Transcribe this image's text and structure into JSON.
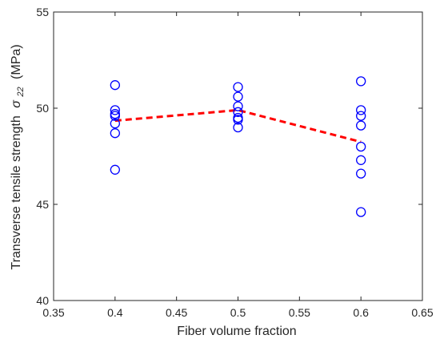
{
  "chart_data": {
    "type": "scatter",
    "title": "",
    "xlabel": "Fiber volume fraction",
    "ylabel_main": "Transverse tensile strength",
    "ylabel_symbol": "σ",
    "ylabel_subscript": "22",
    "ylabel_unit": "(MPa)",
    "xlim": [
      0.35,
      0.65
    ],
    "ylim": [
      40,
      55
    ],
    "x_ticks": [
      0.35,
      0.4,
      0.45,
      0.5,
      0.55,
      0.6,
      0.65
    ],
    "x_tick_labels": [
      "0.35",
      "0.4",
      "0.45",
      "0.5",
      "0.55",
      "0.6",
      "0.65"
    ],
    "y_ticks": [
      40,
      45,
      50,
      55
    ],
    "y_tick_labels": [
      "40",
      "45",
      "50",
      "55"
    ],
    "grid": false,
    "colors": {
      "markers": "#0000ff",
      "mean_line": "#ff0000",
      "axes": "#262626"
    },
    "series": [
      {
        "marker": "open-circle",
        "points": [
          {
            "x": 0.4,
            "y": 51.2
          },
          {
            "x": 0.4,
            "y": 49.9
          },
          {
            "x": 0.4,
            "y": 49.7
          },
          {
            "x": 0.4,
            "y": 49.6
          },
          {
            "x": 0.4,
            "y": 49.2
          },
          {
            "x": 0.4,
            "y": 48.7
          },
          {
            "x": 0.4,
            "y": 46.8
          },
          {
            "x": 0.5,
            "y": 51.1
          },
          {
            "x": 0.5,
            "y": 50.6
          },
          {
            "x": 0.5,
            "y": 50.1
          },
          {
            "x": 0.5,
            "y": 49.8
          },
          {
            "x": 0.5,
            "y": 49.5
          },
          {
            "x": 0.5,
            "y": 49.4
          },
          {
            "x": 0.5,
            "y": 49.0
          },
          {
            "x": 0.6,
            "y": 51.4
          },
          {
            "x": 0.6,
            "y": 49.9
          },
          {
            "x": 0.6,
            "y": 49.6
          },
          {
            "x": 0.6,
            "y": 49.1
          },
          {
            "x": 0.6,
            "y": 48.0
          },
          {
            "x": 0.6,
            "y": 47.3
          },
          {
            "x": 0.6,
            "y": 46.6
          },
          {
            "x": 0.6,
            "y": 44.6
          }
        ]
      },
      {
        "line_style": "dashed",
        "x": [
          0.4,
          0.5,
          0.6
        ],
        "y": [
          49.35,
          49.9,
          48.25
        ]
      }
    ]
  }
}
